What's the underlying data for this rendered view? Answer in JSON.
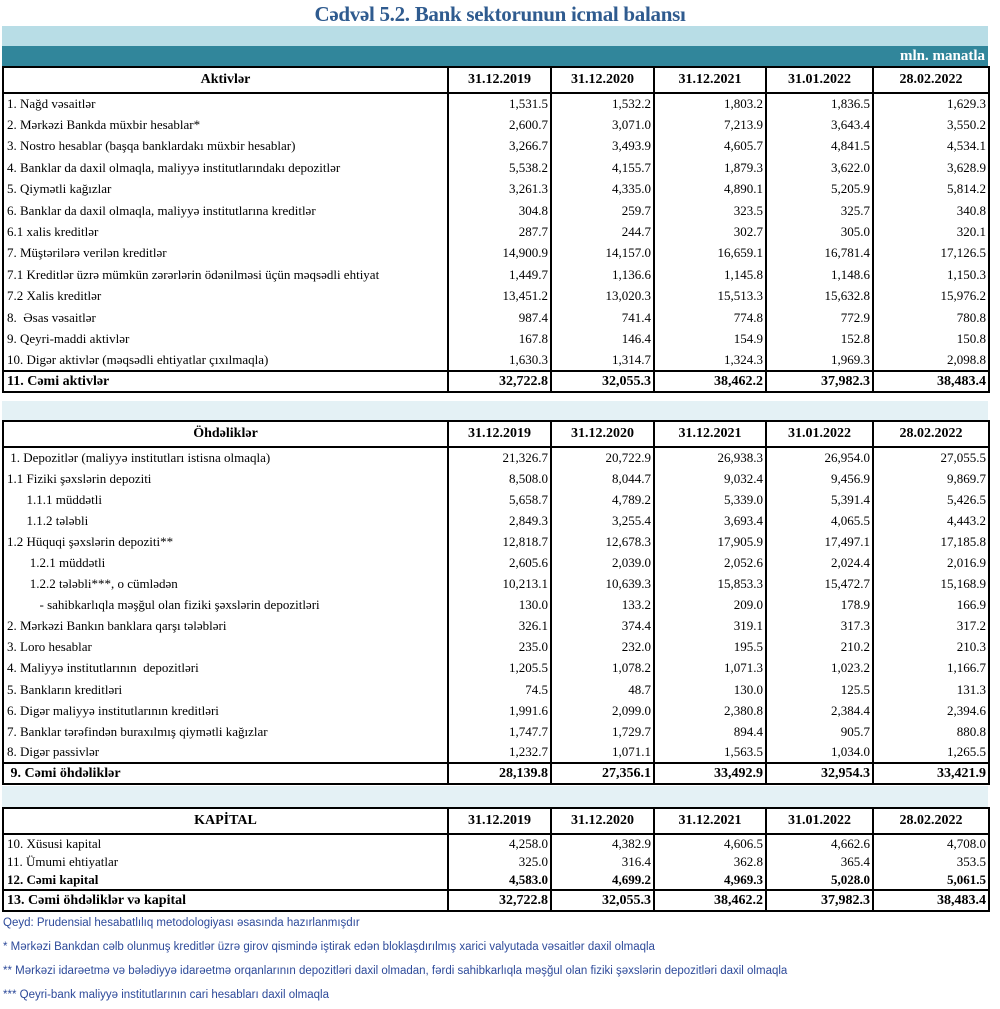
{
  "title": "Cədvəl 5.2. Bank sektorunun icmal balansı",
  "unit": "mln. manatla",
  "dates": [
    "31.12.2019",
    "31.12.2020",
    "31.12.2021",
    "31.01.2022",
    "28.02.2022"
  ],
  "assets": {
    "header": "Aktivlər",
    "rows": [
      {
        "label": "1. Nağd vəsaitlər",
        "values": [
          "1,531.5",
          "1,532.2",
          "1,803.2",
          "1,836.5",
          "1,629.3"
        ]
      },
      {
        "label": "2. Mərkəzi Bankda müxbir hesablar*",
        "values": [
          "2,600.7",
          "3,071.0",
          "7,213.9",
          "3,643.4",
          "3,550.2"
        ]
      },
      {
        "label": "3. Nostro hesablar (başqa banklardakı müxbir hesablar)",
        "values": [
          "3,266.7",
          "3,493.9",
          "4,605.7",
          "4,841.5",
          "4,534.1"
        ]
      },
      {
        "label": "4. Banklar da daxil olmaqla, maliyyə institutlarındakı depozitlər",
        "values": [
          "5,538.2",
          "4,155.7",
          "1,879.3",
          "3,622.0",
          "3,628.9"
        ]
      },
      {
        "label": "5. Qiymətli kağızlar",
        "values": [
          "3,261.3",
          "4,335.0",
          "4,890.1",
          "5,205.9",
          "5,814.2"
        ]
      },
      {
        "label": "6. Banklar da daxil olmaqla, maliyyə institutlarına kreditlər",
        "values": [
          "304.8",
          "259.7",
          "323.5",
          "325.7",
          "340.8"
        ]
      },
      {
        "label": "6.1 xalis kreditlər",
        "values": [
          "287.7",
          "244.7",
          "302.7",
          "305.0",
          "320.1"
        ]
      },
      {
        "label": "7. Müştərilərə verilən kreditlər",
        "values": [
          "14,900.9",
          "14,157.0",
          "16,659.1",
          "16,781.4",
          "17,126.5"
        ]
      },
      {
        "label": "7.1 Kreditlər üzrə mümkün zərərlərin ödənilməsi üçün məqsədli ehtiyat",
        "values": [
          "1,449.7",
          "1,136.6",
          "1,145.8",
          "1,148.6",
          "1,150.3"
        ]
      },
      {
        "label": "7.2 Xalis kreditlər",
        "values": [
          "13,451.2",
          "13,020.3",
          "15,513.3",
          "15,632.8",
          "15,976.2"
        ]
      },
      {
        "label": "8.  Əsas vəsaitlər",
        "values": [
          "987.4",
          "741.4",
          "774.8",
          "772.9",
          "780.8"
        ]
      },
      {
        "label": "9. Qeyri-maddi aktivlər",
        "values": [
          "167.8",
          "146.4",
          "154.9",
          "152.8",
          "150.8"
        ]
      },
      {
        "label": "10. Digər aktivlər (məqsədli ehtiyatlar çıxılmaqla)",
        "values": [
          "1,630.3",
          "1,314.7",
          "1,324.3",
          "1,969.3",
          "2,098.8"
        ]
      }
    ],
    "total": {
      "label": "11. Cəmi aktivlər",
      "values": [
        "32,722.8",
        "32,055.3",
        "38,462.2",
        "37,982.3",
        "38,483.4"
      ]
    }
  },
  "liabilities": {
    "header": "Öhdəliklər",
    "rows": [
      {
        "label": " 1. Depozitlər (maliyyə institutları istisna olmaqla)",
        "values": [
          "21,326.7",
          "20,722.9",
          "26,938.3",
          "26,954.0",
          "27,055.5"
        ]
      },
      {
        "label": "1.1 Fiziki şəxslərin depoziti",
        "values": [
          "8,508.0",
          "8,044.7",
          "9,032.4",
          "9,456.9",
          "9,869.7"
        ]
      },
      {
        "label": "      1.1.1 müddətli",
        "values": [
          "5,658.7",
          "4,789.2",
          "5,339.0",
          "5,391.4",
          "5,426.5"
        ]
      },
      {
        "label": "      1.1.2 tələbli",
        "values": [
          "2,849.3",
          "3,255.4",
          "3,693.4",
          "4,065.5",
          "4,443.2"
        ]
      },
      {
        "label": "1.2 Hüquqi şəxslərin depoziti**",
        "values": [
          "12,818.7",
          "12,678.3",
          "17,905.9",
          "17,497.1",
          "17,185.8"
        ]
      },
      {
        "label": "       1.2.1 müddətli",
        "values": [
          "2,605.6",
          "2,039.0",
          "2,052.6",
          "2,024.4",
          "2,016.9"
        ]
      },
      {
        "label": "       1.2.2 tələbli***, o cümlədən",
        "values": [
          "10,213.1",
          "10,639.3",
          "15,853.3",
          "15,472.7",
          "15,168.9"
        ]
      },
      {
        "label": "          - sahibkarlıqla məşğul olan fiziki şəxslərin depozitləri",
        "values": [
          "130.0",
          "133.2",
          "209.0",
          "178.9",
          "166.9"
        ]
      },
      {
        "label": "2. Mərkəzi Bankın banklara qarşı tələbləri",
        "values": [
          "326.1",
          "374.4",
          "319.1",
          "317.3",
          "317.2"
        ]
      },
      {
        "label": "3. Loro hesablar",
        "values": [
          "235.0",
          "232.0",
          "195.5",
          "210.2",
          "210.3"
        ]
      },
      {
        "label": "4. Maliyyə institutlarının  depozitləri",
        "values": [
          "1,205.5",
          "1,078.2",
          "1,071.3",
          "1,023.2",
          "1,166.7"
        ]
      },
      {
        "label": "5. Bankların kreditləri",
        "values": [
          "74.5",
          "48.7",
          "130.0",
          "125.5",
          "131.3"
        ]
      },
      {
        "label": "6. Digər maliyyə institutlarının kreditləri",
        "values": [
          "1,991.6",
          "2,099.0",
          "2,380.8",
          "2,384.4",
          "2,394.6"
        ]
      },
      {
        "label": "7. Banklar tərəfindən buraxılmış qiymətli kağızlar",
        "values": [
          "1,747.7",
          "1,729.7",
          "894.4",
          "905.7",
          "880.8"
        ]
      },
      {
        "label": "8. Digər passivlər",
        "values": [
          "1,232.7",
          "1,071.1",
          "1,563.5",
          "1,034.0",
          "1,265.5"
        ]
      }
    ],
    "total": {
      "label": " 9. Cəmi öhdəliklər",
      "values": [
        "28,139.8",
        "27,356.1",
        "33,492.9",
        "32,954.3",
        "33,421.9"
      ]
    }
  },
  "capital": {
    "header": "KAPİTAL",
    "rows": [
      {
        "label": "10. Xüsusi kapital",
        "values": [
          "4,258.0",
          "4,382.9",
          "4,606.5",
          "4,662.6",
          "4,708.0"
        ]
      },
      {
        "label": "11. Ümumi ehtiyatlar",
        "values": [
          "325.0",
          "316.4",
          "362.8",
          "365.4",
          "353.5"
        ]
      }
    ],
    "subtotal": {
      "label": "12. Cəmi kapital",
      "values": [
        "4,583.0",
        "4,699.2",
        "4,969.3",
        "5,028.0",
        "5,061.5"
      ]
    },
    "total": {
      "label": "13. Cəmi öhdəliklər və kapital",
      "values": [
        "32,722.8",
        "32,055.3",
        "38,462.2",
        "37,982.3",
        "38,483.4"
      ]
    }
  },
  "notes": [
    "Qeyd: Prudensial hesabatlılıq metodologiyası əsasında hazırlanmışdır",
    "* Mərkəzi Bankdan cəlb olunmuş kreditlər üzrə girov qismində iştirak edən bloklaşdırılmış xarici valyutada vəsaitlər daxil olmaqla",
    "** Mərkəzi idarəetmə və bələdiyyə idarəetmə orqanlarının depozitləri daxil olmadan, fərdi sahibkarlıqla məşğul olan fiziki şəxslərin depozitləri daxil olmaqla",
    "*** Qeyri-bank maliyyə institutlarının cari hesabları daxil olmaqla"
  ]
}
